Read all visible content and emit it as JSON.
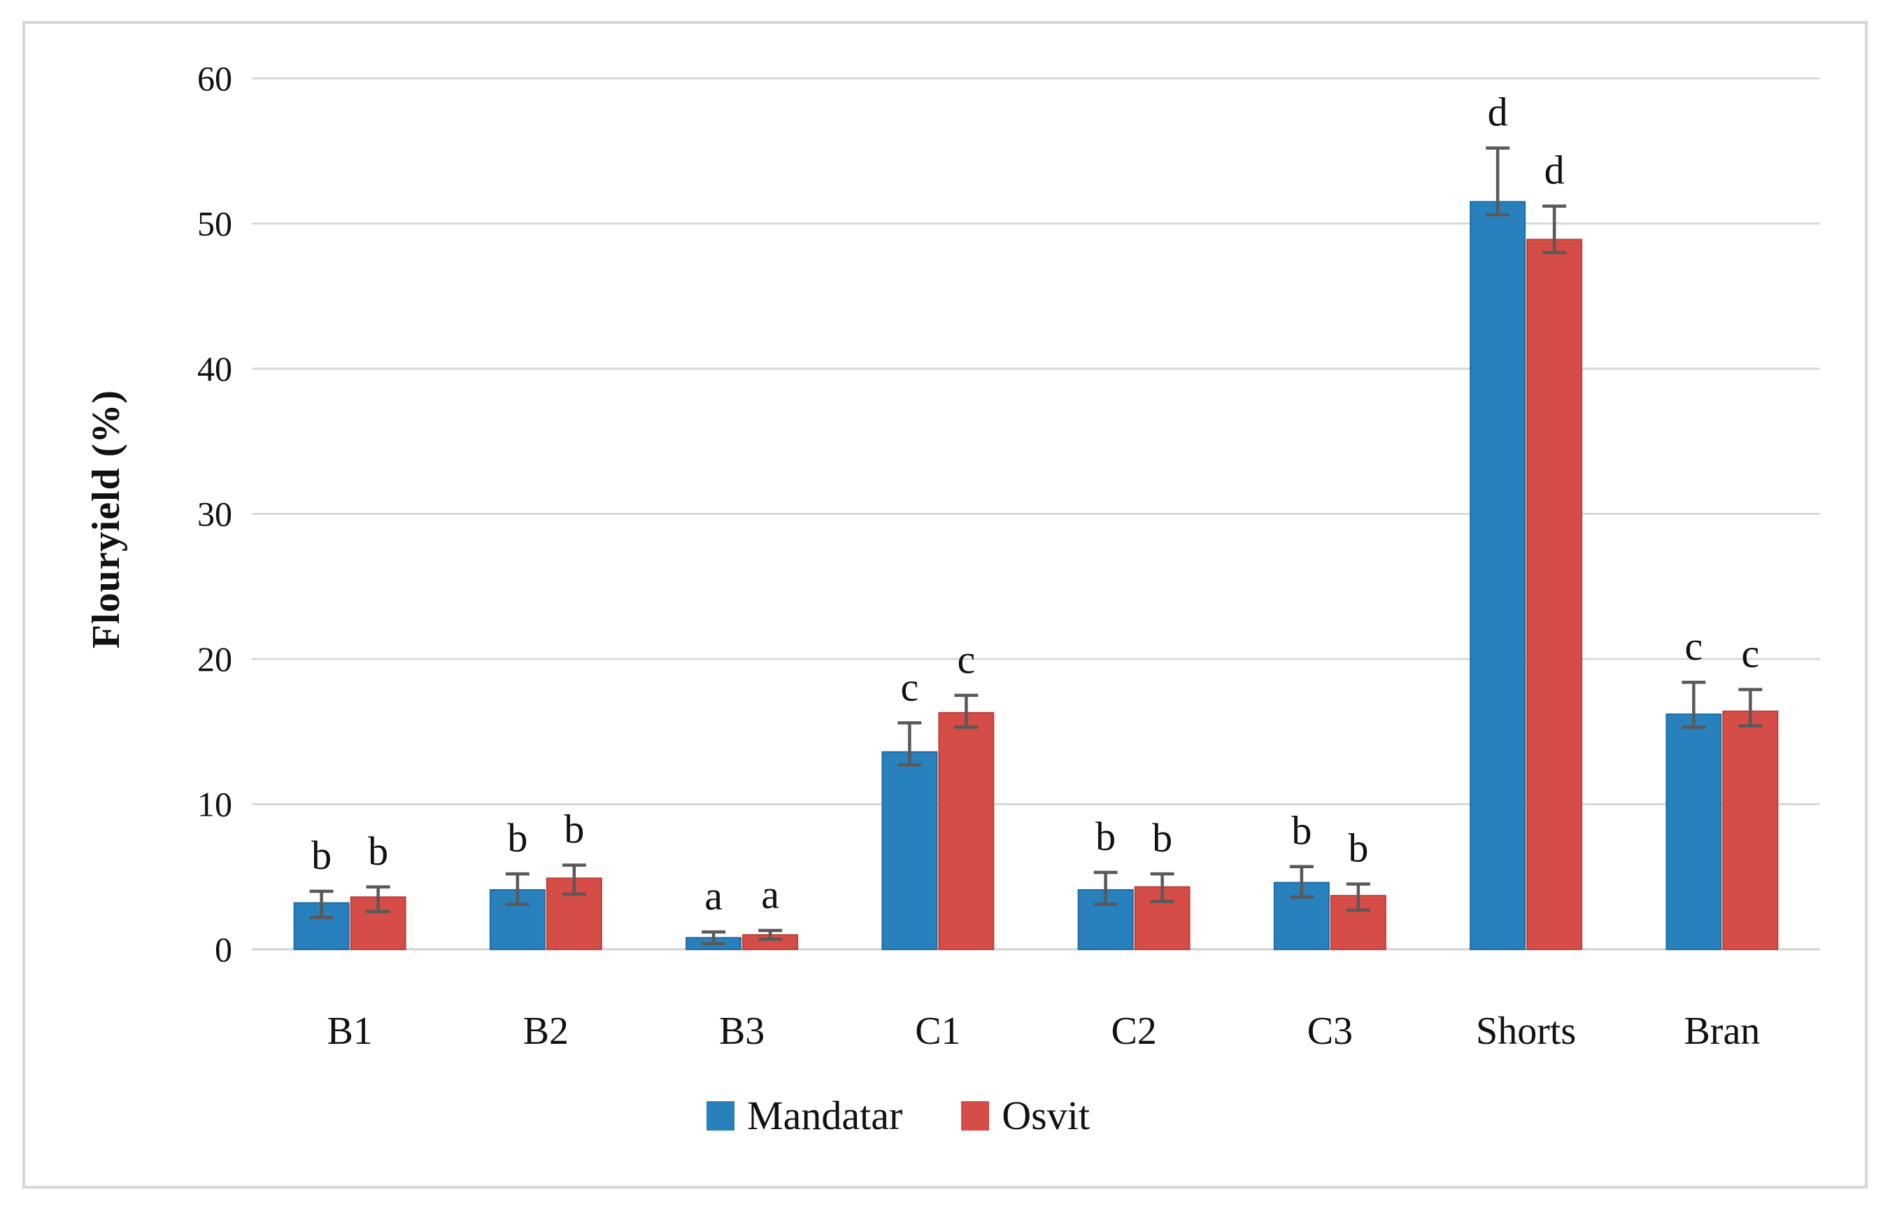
{
  "figure": {
    "background": "#ffffff",
    "border_color": "#d7d7d7"
  },
  "chart_data": {
    "type": "bar",
    "title": "",
    "xlabel": "",
    "ylabel": "Flouryield (%)",
    "categories": [
      "B1",
      "B2",
      "B3",
      "C1",
      "C2",
      "C3",
      "Shorts",
      "Bran"
    ],
    "series": [
      {
        "name": "Mandatar",
        "color": "#2880bc",
        "edge_color": "#1f6ba2",
        "values": [
          3.2,
          4.1,
          0.8,
          13.6,
          4.1,
          4.6,
          51.5,
          16.2
        ],
        "err_up": [
          0.8,
          1.1,
          0.4,
          2.0,
          1.2,
          1.1,
          3.7,
          2.2
        ],
        "err_down": [
          1.0,
          1.0,
          0.4,
          0.9,
          1.0,
          1.0,
          0.9,
          0.9
        ],
        "letters": [
          "b",
          "b",
          "a",
          "c",
          "b",
          "b",
          "d",
          "c"
        ]
      },
      {
        "name": "Osvit",
        "color": "#d64c46",
        "edge_color": "#bc403b",
        "values": [
          3.6,
          4.9,
          1.0,
          16.3,
          4.3,
          3.7,
          48.9,
          16.4
        ],
        "err_up": [
          0.7,
          0.9,
          0.3,
          1.2,
          0.9,
          0.8,
          2.3,
          1.5
        ],
        "err_down": [
          1.0,
          1.1,
          0.3,
          1.0,
          1.0,
          1.0,
          0.9,
          1.0
        ],
        "letters": [
          "b",
          "b",
          "a",
          "c",
          "b",
          "b",
          "d",
          "c"
        ]
      }
    ],
    "y_ticks": [
      0,
      10,
      20,
      30,
      40,
      50,
      60
    ],
    "ylim": [
      0,
      60
    ],
    "grid": true,
    "legend_position": "bottom",
    "gridline_color": "#d9d9d9",
    "axisline_color": "#d2d2d2",
    "error_bar_color": "#595959",
    "letter_color": "#000000"
  }
}
